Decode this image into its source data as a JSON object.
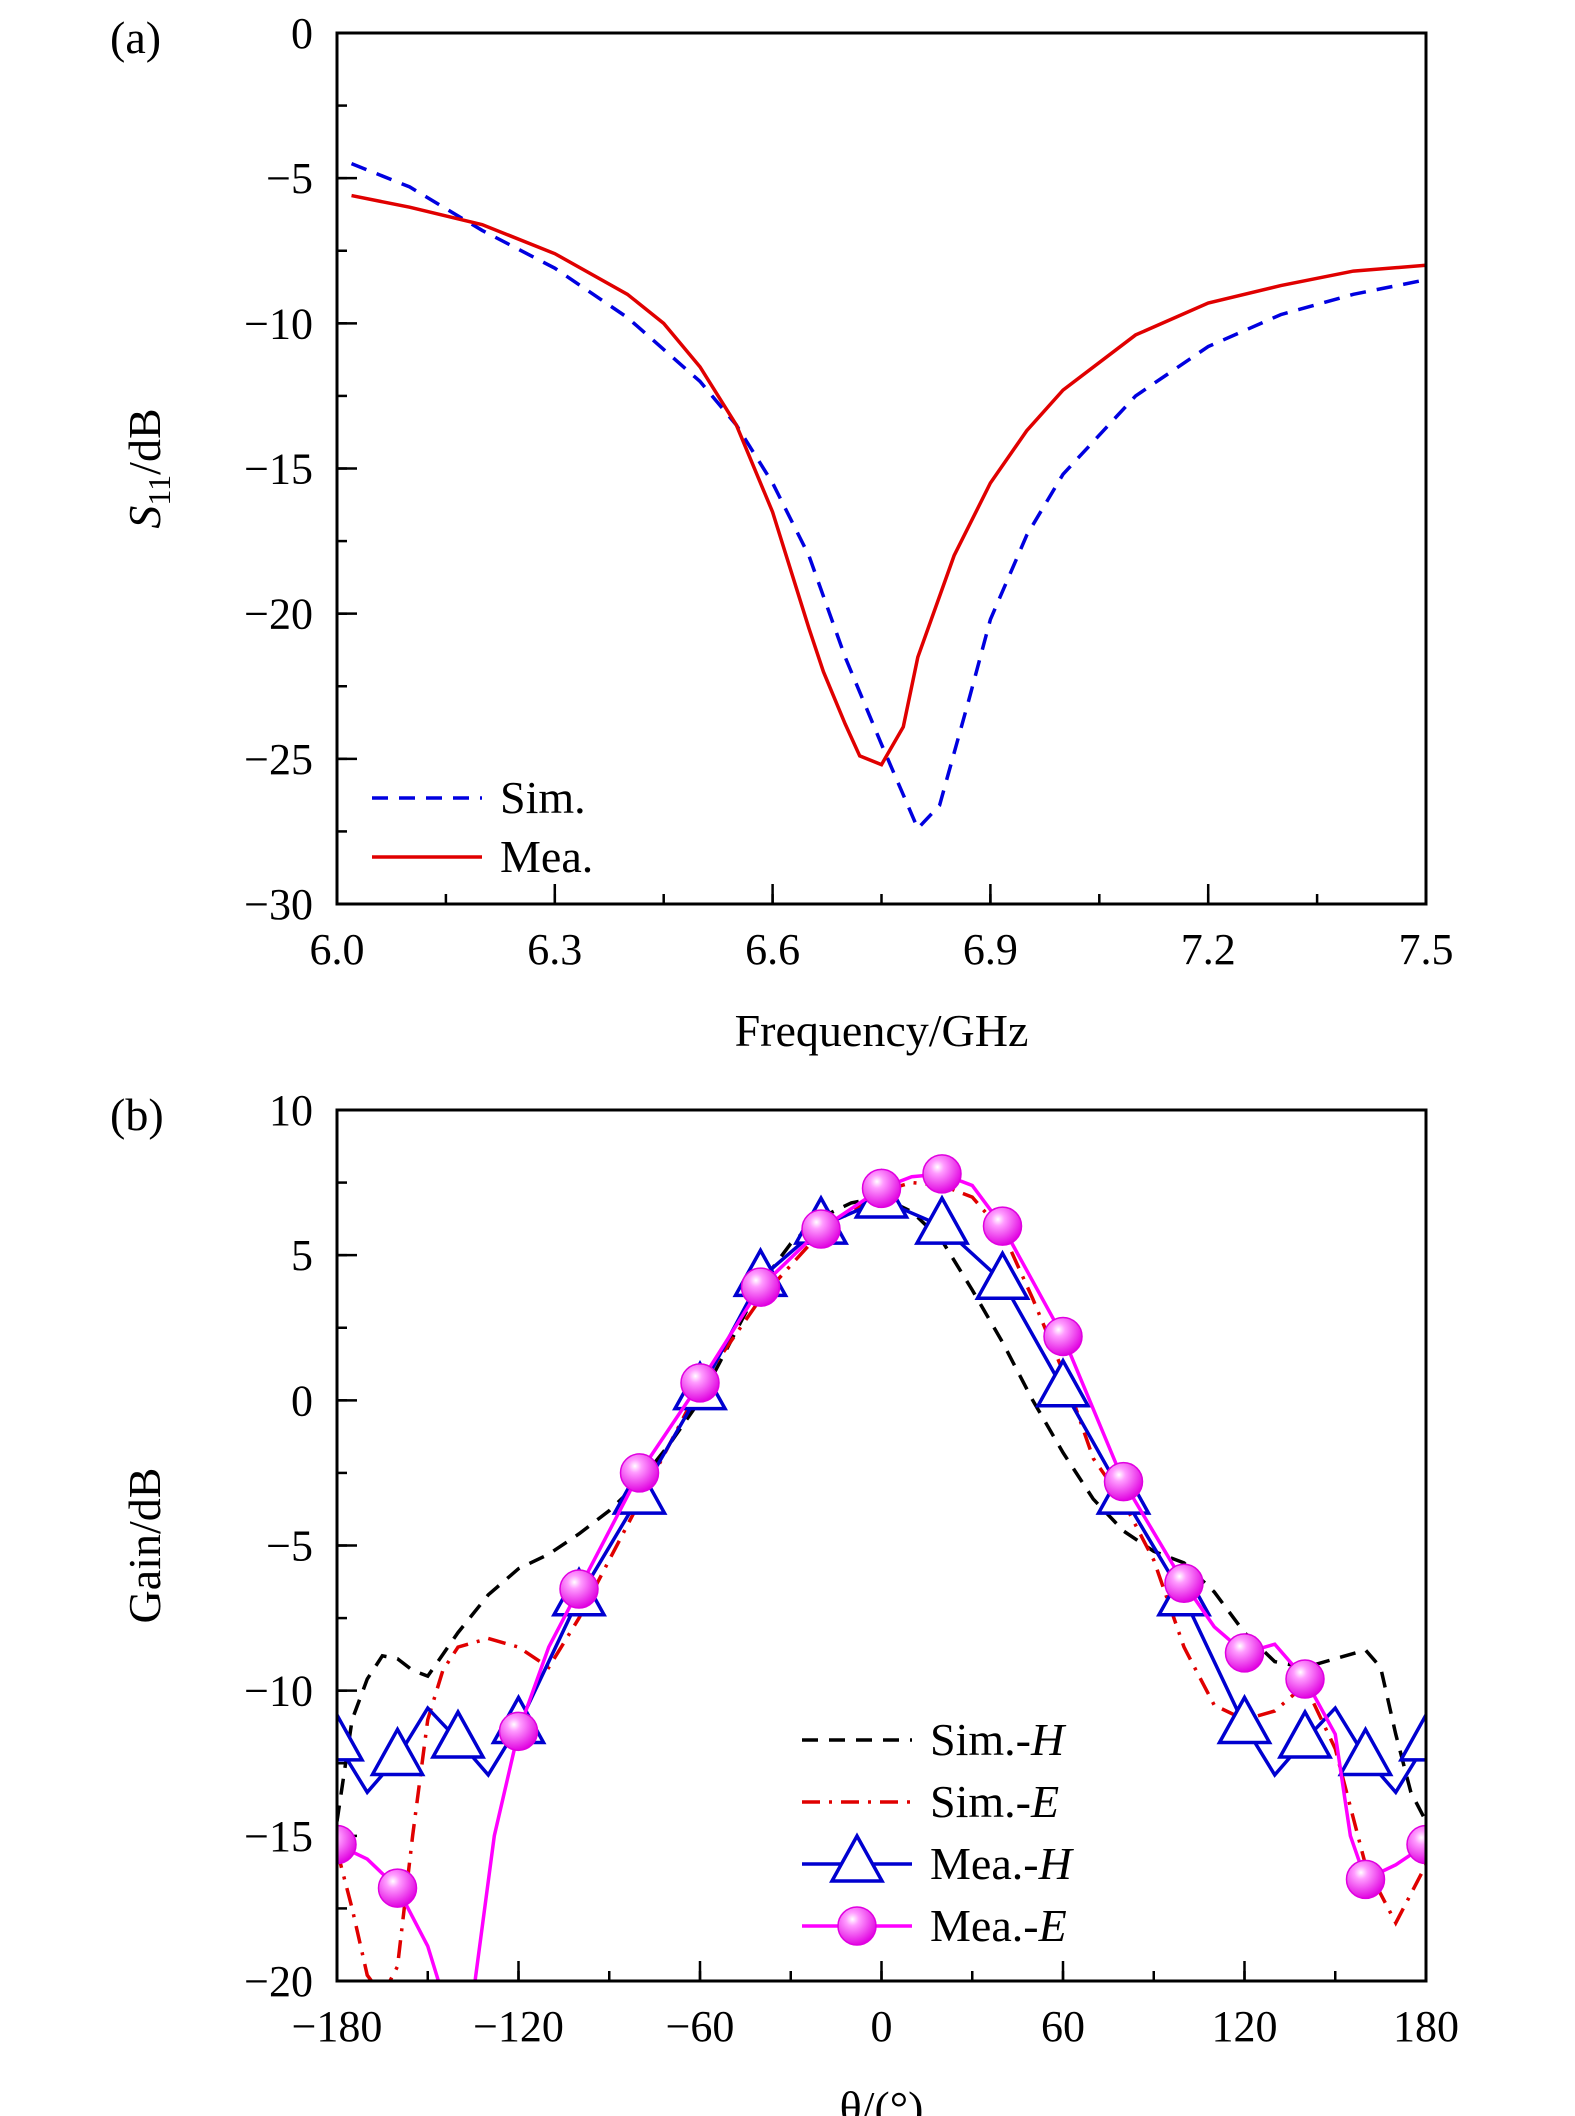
{
  "chart_data": [
    {
      "panel_label": "(a)",
      "type": "line",
      "xlabel": "Frequency/GHz",
      "ylabel_main": "S",
      "ylabel_sub": "11",
      "ylabel_unit": "/dB",
      "xlim": [
        6.0,
        7.5
      ],
      "ylim": [
        -30,
        0
      ],
      "xticks": [
        "6.0",
        "6.3",
        "6.6",
        "6.9",
        "7.2",
        "7.5"
      ],
      "xtick_values": [
        6.0,
        6.3,
        6.6,
        6.9,
        7.2,
        7.5
      ],
      "yticks": [
        "0",
        "−5",
        "−10",
        "−15",
        "−20",
        "−25",
        "−30"
      ],
      "ytick_values": [
        0,
        -5,
        -10,
        -15,
        -20,
        -25,
        -30
      ],
      "legend_position": "bottom-left",
      "grid": false,
      "series": [
        {
          "name": "Sim.",
          "color": "#0000e0",
          "style": "dashed",
          "x": [
            6.02,
            6.1,
            6.2,
            6.3,
            6.4,
            6.5,
            6.55,
            6.6,
            6.65,
            6.7,
            6.75,
            6.8,
            6.83,
            6.87,
            6.9,
            6.95,
            7.0,
            7.1,
            7.2,
            7.3,
            7.4,
            7.5
          ],
          "y": [
            -4.5,
            -5.3,
            -6.8,
            -8.1,
            -9.8,
            -12.0,
            -13.5,
            -15.5,
            -18.0,
            -21.5,
            -24.5,
            -27.4,
            -26.6,
            -23.0,
            -20.2,
            -17.3,
            -15.2,
            -12.5,
            -10.8,
            -9.7,
            -9.0,
            -8.5
          ]
        },
        {
          "name": "Mea.",
          "color": "#e00000",
          "style": "solid",
          "x": [
            6.02,
            6.1,
            6.2,
            6.3,
            6.4,
            6.45,
            6.5,
            6.55,
            6.6,
            6.65,
            6.67,
            6.7,
            6.72,
            6.75,
            6.78,
            6.8,
            6.85,
            6.9,
            6.95,
            7.0,
            7.1,
            7.2,
            7.3,
            7.4,
            7.5
          ],
          "y": [
            -5.6,
            -6.0,
            -6.6,
            -7.6,
            -9.0,
            -10.0,
            -11.5,
            -13.5,
            -16.5,
            -20.5,
            -22.0,
            -23.8,
            -24.9,
            -25.2,
            -23.9,
            -21.5,
            -18.0,
            -15.5,
            -13.7,
            -12.3,
            -10.4,
            -9.3,
            -8.7,
            -8.2,
            -8.0
          ]
        }
      ]
    },
    {
      "panel_label": "(b)",
      "type": "line",
      "xlabel": "θ/(°)",
      "ylabel": "Gain/dB",
      "xlim": [
        -180,
        180
      ],
      "ylim": [
        -20,
        10
      ],
      "xticks": [
        "−180",
        "−120",
        "−60",
        "0",
        "60",
        "120",
        "180"
      ],
      "xtick_values": [
        -180,
        -120,
        -60,
        0,
        60,
        120,
        180
      ],
      "yticks": [
        "10",
        "5",
        "0",
        "−5",
        "−10",
        "−15",
        "−20"
      ],
      "ytick_values": [
        10,
        5,
        0,
        -5,
        -10,
        -15,
        -20
      ],
      "legend_position": "bottom-right",
      "grid": false,
      "series": [
        {
          "name": "Sim.-",
          "name_italic": "H",
          "color": "#000000",
          "style": "dashed",
          "marker": "none",
          "x": [
            -180,
            -175,
            -170,
            -165,
            -160,
            -155,
            -150,
            -140,
            -130,
            -120,
            -110,
            -100,
            -90,
            -80,
            -70,
            -60,
            -50,
            -40,
            -30,
            -20,
            -10,
            0,
            10,
            20,
            30,
            40,
            50,
            60,
            70,
            80,
            90,
            100,
            110,
            120,
            130,
            140,
            150,
            160,
            165,
            170,
            175,
            180
          ],
          "y": [
            -14.5,
            -11,
            -9.6,
            -8.8,
            -8.9,
            -9.3,
            -9.5,
            -8.0,
            -6.7,
            -5.8,
            -5.3,
            -4.6,
            -3.8,
            -2.8,
            -1.5,
            0,
            2,
            4,
            5.4,
            6.3,
            6.8,
            7.0,
            6.5,
            5.5,
            3.8,
            2.0,
            0,
            -1.8,
            -3.4,
            -4.5,
            -5.2,
            -5.6,
            -6.6,
            -8.0,
            -9.0,
            -9.2,
            -8.9,
            -8.6,
            -9.2,
            -11.5,
            -13.5,
            -14.5
          ]
        },
        {
          "name": "Sim.-",
          "name_italic": "E",
          "color": "#e00000",
          "style": "dashdot",
          "marker": "none",
          "x": [
            -180,
            -175,
            -170,
            -165,
            -160,
            -155,
            -150,
            -145,
            -140,
            -130,
            -120,
            -110,
            -100,
            -90,
            -80,
            -60,
            -40,
            -20,
            0,
            10,
            20,
            30,
            40,
            50,
            60,
            70,
            80,
            90,
            100,
            110,
            120,
            130,
            140,
            150,
            160,
            170,
            180
          ],
          "y": [
            -15.5,
            -17.5,
            -19.8,
            -20.5,
            -19.5,
            -15,
            -11,
            -9.3,
            -8.5,
            -8.2,
            -8.5,
            -9.2,
            -7.5,
            -5.5,
            -3.5,
            0.5,
            3.5,
            5.8,
            7.2,
            7.5,
            7.4,
            7.0,
            5.8,
            3.5,
            1.0,
            -2,
            -3.5,
            -5.5,
            -8.5,
            -10.5,
            -11,
            -10.7,
            -9.8,
            -12,
            -16,
            -18,
            -16
          ]
        },
        {
          "name": "Mea.-",
          "name_italic": "H",
          "color": "#0000d0",
          "style": "solid",
          "marker": "open-triangle",
          "x": [
            -180,
            -170,
            -160,
            -150,
            -140,
            -130,
            -120,
            -100,
            -80,
            -60,
            -40,
            -20,
            0,
            20,
            40,
            60,
            80,
            100,
            120,
            130,
            140,
            150,
            160,
            170,
            180
          ],
          "y": [
            -11.8,
            -13.5,
            -12.3,
            -10.6,
            -11.7,
            -12.9,
            -11.2,
            -6.8,
            -3.3,
            0.3,
            4.2,
            6.0,
            6.9,
            6.0,
            4.1,
            0.4,
            -3.3,
            -6.8,
            -11.2,
            -12.9,
            -11.7,
            -10.6,
            -12.3,
            -13.5,
            -11.8
          ],
          "marker_x": [
            -180,
            -160,
            -140,
            -120,
            -100,
            -80,
            -60,
            -40,
            -20,
            0,
            20,
            40,
            60,
            80,
            100,
            120,
            140,
            160,
            180
          ],
          "marker_y": [
            -11.8,
            -12.3,
            -11.7,
            -11.2,
            -6.8,
            -3.3,
            0.3,
            4.2,
            6.0,
            6.9,
            6.0,
            4.1,
            0.4,
            -3.3,
            -6.8,
            -11.2,
            -11.7,
            -12.3,
            -11.8
          ]
        },
        {
          "name": "Mea.-",
          "name_italic": "E",
          "color": "#ff00ff",
          "style": "solid",
          "marker": "filled-sphere",
          "x": [
            -180,
            -170,
            -160,
            -150,
            -145,
            -135,
            -128,
            -120,
            -110,
            -100,
            -80,
            -60,
            -40,
            -20,
            0,
            10,
            20,
            30,
            40,
            60,
            80,
            100,
            110,
            120,
            130,
            140,
            150,
            155,
            160,
            170,
            180
          ],
          "y": [
            -15.3,
            -15.8,
            -16.8,
            -18.8,
            -20.5,
            -20.5,
            -15,
            -11.4,
            -8.5,
            -6.5,
            -2.5,
            0.6,
            3.9,
            5.9,
            7.3,
            7.7,
            7.8,
            7.4,
            6.0,
            2.2,
            -2.8,
            -6.3,
            -7.8,
            -8.7,
            -8.4,
            -9.6,
            -11.5,
            -15,
            -16.5,
            -16,
            -15.3
          ],
          "marker_x": [
            -180,
            -160,
            -120,
            -100,
            -80,
            -60,
            -40,
            -20,
            0,
            20,
            40,
            60,
            80,
            100,
            120,
            140,
            160,
            180
          ],
          "marker_y": [
            -15.3,
            -16.8,
            -11.4,
            -6.5,
            -2.5,
            0.6,
            3.9,
            5.9,
            7.3,
            7.8,
            6.0,
            2.2,
            -2.8,
            -6.3,
            -8.7,
            -9.6,
            -16.5,
            -15.3
          ]
        }
      ]
    }
  ]
}
